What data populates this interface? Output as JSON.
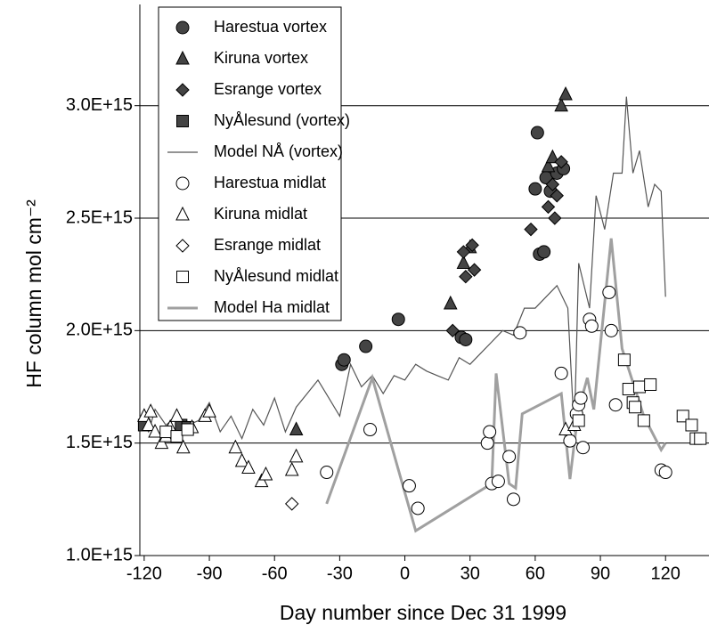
{
  "chart_data": {
    "type": "scatter",
    "xlabel": "Day number since Dec 31 1999",
    "ylabel": "HF column mol cm⁻²",
    "xlim": [
      -122,
      140
    ],
    "xticks": [
      -120,
      -90,
      -60,
      -30,
      0,
      30,
      60,
      90,
      120
    ],
    "ylim": [
      1000000000000000.0,
      3450000000000000.0
    ],
    "yticks": [
      {
        "value": 1000000000000000.0,
        "label": "1.0E+15"
      },
      {
        "value": 1500000000000000.0,
        "label": "1.5E+15"
      },
      {
        "value": 2000000000000000.0,
        "label": "2.0E+15"
      },
      {
        "value": 2500000000000000.0,
        "label": "2.5E+15"
      },
      {
        "value": 3000000000000000.0,
        "label": "3.0E+15"
      }
    ],
    "grid": true,
    "legend": "top-left",
    "series": [
      {
        "name": "Harestua vortex",
        "marker": "circle",
        "color": "#444444",
        "x": [
          -29,
          -28,
          -18,
          -3,
          26,
          28,
          60,
          61,
          62,
          64,
          65,
          67,
          70,
          73
        ],
        "values": [
          1850000000000000.0,
          1870000000000000.0,
          1930000000000000.0,
          2050000000000000.0,
          1970000000000000.0,
          1960000000000000.0,
          2630000000000000.0,
          2880000000000000.0,
          2340000000000000.0,
          2350000000000000.0,
          2680000000000000.0,
          2620000000000000.0,
          2700000000000000.0,
          2720000000000000.0
        ]
      },
      {
        "name": "Kiruna vortex",
        "marker": "triangle",
        "color": "#444444",
        "x": [
          -50,
          21,
          27,
          30,
          66,
          68,
          72,
          74
        ],
        "values": [
          1560000000000000.0,
          2120000000000000.0,
          2300000000000000.0,
          2370000000000000.0,
          2730000000000000.0,
          2770000000000000.0,
          3000000000000000.0,
          3050000000000000.0
        ]
      },
      {
        "name": "Esrange vortex",
        "marker": "diamond",
        "color": "#444444",
        "x": [
          22,
          27,
          28,
          31,
          32,
          58,
          66,
          68,
          69,
          70,
          72
        ],
        "values": [
          2000000000000000.0,
          2350000000000000.0,
          2240000000000000.0,
          2380000000000000.0,
          2270000000000000.0,
          2450000000000000.0,
          2550000000000000.0,
          2650000000000000.0,
          2500000000000000.0,
          2600000000000000.0,
          2750000000000000.0
        ]
      },
      {
        "name": "NyÅlesund (vortex)",
        "marker": "square",
        "color": "#444444",
        "x": [
          -120,
          -103,
          -100
        ],
        "values": [
          1580000000000000.0,
          1580000000000000.0,
          1570000000000000.0
        ]
      },
      {
        "name": "Model NÅ (vortex)",
        "marker": "line",
        "color": "#555555",
        "width": 1.2,
        "x": [
          -122,
          -118,
          -115,
          -110,
          -105,
          -100,
          -95,
          -90,
          -85,
          -80,
          -75,
          -70,
          -65,
          -60,
          -55,
          -50,
          -45,
          -40,
          -35,
          -30,
          -25,
          -20,
          -15,
          -10,
          -5,
          0,
          5,
          10,
          15,
          20,
          25,
          30,
          35,
          40,
          45,
          50,
          55,
          60,
          65,
          70,
          75,
          78,
          80,
          85,
          88,
          92,
          96,
          100,
          102,
          105,
          108,
          112,
          115,
          118,
          120
        ],
        "values": [
          1620000000000000.0,
          1550000000000000.0,
          1650000000000000.0,
          1580000000000000.0,
          1620000000000000.0,
          1580000000000000.0,
          1600000000000000.0,
          1680000000000000.0,
          1550000000000000.0,
          1620000000000000.0,
          1520000000000000.0,
          1650000000000000.0,
          1580000000000000.0,
          1700000000000000.0,
          1550000000000000.0,
          1660000000000000.0,
          1720000000000000.0,
          1780000000000000.0,
          1700000000000000.0,
          1620000000000000.0,
          1850000000000000.0,
          1750000000000000.0,
          1800000000000000.0,
          1720000000000000.0,
          1800000000000000.0,
          1780000000000000.0,
          1850000000000000.0,
          1820000000000000.0,
          1800000000000000.0,
          1780000000000000.0,
          1880000000000000.0,
          1850000000000000.0,
          1900000000000000.0,
          1950000000000000.0,
          2000000000000000.0,
          1980000000000000.0,
          2100000000000000.0,
          2100000000000000.0,
          2150000000000000.0,
          2200000000000000.0,
          2100000000000000.0,
          1550000000000000.0,
          2300000000000000.0,
          2100000000000000.0,
          2600000000000000.0,
          2450000000000000.0,
          2700000000000000.0,
          2700000000000000.0,
          3040000000000000.0,
          2700000000000000.0,
          2800000000000000.0,
          2550000000000000.0,
          2650000000000000.0,
          2620000000000000.0,
          2150000000000000.0
        ]
      },
      {
        "name": "Harestua midlat",
        "marker": "circle",
        "color": "#ffffff",
        "x": [
          -36,
          -16,
          2,
          6,
          38,
          39,
          40,
          43,
          48,
          50,
          53,
          72,
          76,
          79,
          80,
          81,
          82,
          85,
          86,
          94,
          95,
          97,
          118,
          120
        ],
        "values": [
          1370000000000000.0,
          1560000000000000.0,
          1310000000000000.0,
          1210000000000000.0,
          1500000000000000.0,
          1550000000000000.0,
          1320000000000000.0,
          1330000000000000.0,
          1440000000000000.0,
          1250000000000000.0,
          1990000000000000.0,
          1810000000000000.0,
          1510000000000000.0,
          1630000000000000.0,
          1670000000000000.0,
          1700000000000000.0,
          1480000000000000.0,
          2050000000000000.0,
          2020000000000000.0,
          2170000000000000.0,
          2000000000000000.0,
          1670000000000000.0,
          1380000000000000.0,
          1370000000000000.0
        ]
      },
      {
        "name": "Kiruna  midlat",
        "marker": "triangle",
        "color": "#ffffff",
        "x": [
          -120,
          -118,
          -117,
          -115,
          -112,
          -110,
          -108,
          -105,
          -102,
          -98,
          -92,
          -90,
          -78,
          -75,
          -72,
          -66,
          -64,
          -52,
          -50,
          74,
          78
        ],
        "values": [
          1620000000000000.0,
          1580000000000000.0,
          1640000000000000.0,
          1550000000000000.0,
          1500000000000000.0,
          1530000000000000.0,
          1570000000000000.0,
          1620000000000000.0,
          1480000000000000.0,
          1570000000000000.0,
          1620000000000000.0,
          1640000000000000.0,
          1480000000000000.0,
          1420000000000000.0,
          1390000000000000.0,
          1330000000000000.0,
          1360000000000000.0,
          1380000000000000.0,
          1440000000000000.0,
          1560000000000000.0,
          1580000000000000.0
        ]
      },
      {
        "name": "Esrange midlat",
        "marker": "diamond",
        "color": "#ffffff",
        "x": [
          -52
        ],
        "values": [
          1230000000000000.0
        ]
      },
      {
        "name": "NyÅlesund midlat",
        "marker": "square",
        "color": "#ffffff",
        "x": [
          -110,
          -105,
          -100,
          80,
          101,
          103,
          105,
          106,
          108,
          110,
          113,
          128,
          132,
          134,
          136
        ],
        "values": [
          1550000000000000.0,
          1530000000000000.0,
          1560000000000000.0,
          1600000000000000.0,
          1870000000000000.0,
          1740000000000000.0,
          1680000000000000.0,
          1660000000000000.0,
          1750000000000000.0,
          1600000000000000.0,
          1760000000000000.0,
          1620000000000000.0,
          1580000000000000.0,
          1520000000000000.0,
          1520000000000000.0
        ]
      },
      {
        "name": "Model Ha midlat",
        "marker": "line",
        "color": "#a0a0a0",
        "width": 3,
        "x": [
          -36,
          -15,
          5,
          40,
          42,
          48,
          51,
          54,
          72,
          76,
          78,
          80,
          84,
          87,
          95,
          100,
          110,
          118,
          120
        ],
        "values": [
          1230000000000000.0,
          1790000000000000.0,
          1110000000000000.0,
          1320000000000000.0,
          1810000000000000.0,
          1320000000000000.0,
          1300000000000000.0,
          1630000000000000.0,
          1720000000000000.0,
          1340000000000000.0,
          1500000000000000.0,
          1650000000000000.0,
          1790000000000000.0,
          1650000000000000.0,
          2410000000000000.0,
          1920000000000000.0,
          1620000000000000.0,
          1470000000000000.0,
          1500000000000000.0
        ]
      }
    ]
  }
}
